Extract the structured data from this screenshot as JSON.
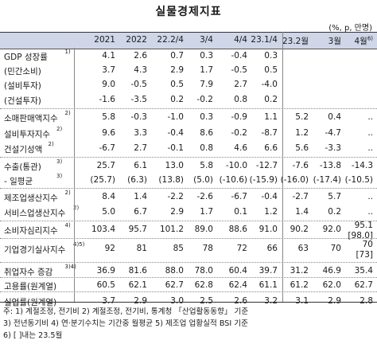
{
  "title": "실물경제지표",
  "unit": "(%, p, 만명)",
  "columns": [
    "2021",
    "2022",
    "22.2/4",
    "3/4",
    "4/4",
    "23.1/4",
    "23.2월",
    "3월",
    "4월"
  ],
  "col4_sup": "6)",
  "rows": [
    {
      "label": "GDP 성장률",
      "sup": "1)",
      "values": [
        "4.1",
        "2.6",
        "0.7",
        "0.3",
        "-0.4",
        "0.3",
        "",
        "",
        ""
      ]
    },
    {
      "label": "(민간소비)",
      "sup": "",
      "values": [
        "3.7",
        "4.3",
        "2.9",
        "1.7",
        "-0.5",
        "0.5",
        "",
        "",
        ""
      ]
    },
    {
      "label": "(설비투자)",
      "sup": "",
      "values": [
        "9.0",
        "-0.5",
        "0.5",
        "7.9",
        "2.7",
        "-4.0",
        "",
        "",
        ""
      ]
    },
    {
      "label": "(건설투자)",
      "sup": "",
      "values": [
        "-1.6",
        "-3.5",
        "0.2",
        "-0.2",
        "0.8",
        "0.2",
        "",
        "",
        ""
      ]
    },
    {
      "label": "소매판매액지수",
      "sup": "2)",
      "values": [
        "5.8",
        "-0.3",
        "-1.0",
        "0.3",
        "-0.9",
        "1.1",
        "5.2",
        "0.4",
        ".."
      ]
    },
    {
      "label": "설비투자지수",
      "sup": "2)",
      "values": [
        "9.6",
        "3.3",
        "-0.4",
        "8.6",
        "-0.2",
        "-8.7",
        "1.2",
        "-4.7",
        ".."
      ]
    },
    {
      "label": "건설기성액",
      "sup": "2)",
      "values": [
        "-6.7",
        "2.7",
        "-0.1",
        "0.8",
        "4.6",
        "6.6",
        "5.6",
        "-3.3",
        ".."
      ]
    },
    {
      "label": "수출(통관)",
      "sup": "3)",
      "values": [
        "25.7",
        "6.1",
        "13.0",
        "5.8",
        "-10.0",
        "-12.7",
        "-7.6",
        "-13.8",
        "-14.3"
      ]
    },
    {
      "label": " - 일평균",
      "sup": "3)",
      "values": [
        "(25.7)",
        "(6.3)",
        "(13.8)",
        "(5.0)",
        "(-10.6)",
        "(-15.9)",
        "(-16.0)",
        "(-17.4)",
        "(-10.5)"
      ]
    },
    {
      "label": "제조업생산지수",
      "sup": "2)",
      "values": [
        "8.4",
        "1.4",
        "-2.2",
        "-2.6",
        "-6.7",
        "-0.4",
        "-2.7",
        "5.7",
        ".."
      ]
    },
    {
      "label": "서비스업생산지수",
      "sup": "2)",
      "values": [
        "5.0",
        "6.7",
        "2.9",
        "1.7",
        "0.1",
        "1.2",
        "1.4",
        "0.2",
        ".."
      ]
    },
    {
      "label": "소비자심리지수",
      "sup": "4)",
      "values": [
        "103.4",
        "95.7",
        "101.2",
        "89.0",
        "88.6",
        "91.0",
        "90.2",
        "92.0",
        "95.1"
      ],
      "extra": "[98.0]"
    },
    {
      "label": "기업경기실사지수",
      "sup": "4)5)",
      "values": [
        "92",
        "81",
        "85",
        "78",
        "72",
        "66",
        "63",
        "70",
        "70"
      ],
      "extra": "[73]"
    },
    {
      "label": "취업자수 증감",
      "sup": "3)4)",
      "values": [
        "36.9",
        "81.6",
        "88.0",
        "78.0",
        "60.4",
        "39.7",
        "31.2",
        "46.9",
        "35.4"
      ]
    },
    {
      "label": "고용률(원계열)",
      "sup": "",
      "values": [
        "60.5",
        "62.1",
        "62.7",
        "62.8",
        "62.4",
        "61.1",
        "61.2",
        "62.0",
        "62.7"
      ]
    },
    {
      "label": "실업률(원계열)",
      "sup": "",
      "values": [
        "3.7",
        "2.9",
        "3.0",
        "2.5",
        "2.6",
        "3.2",
        "3.1",
        "2.9",
        "2.8"
      ]
    }
  ],
  "footnotes": [
    "주: 1) 계절조정, 전기비   2) 계절조정, 전기비, 통계청 「산업활동동향」 기준",
    "     3) 전년동기비   4) 연·분기수치는 기간중 월평균   5) 제조업 업황실적 BSI 기준",
    "     6) [ ]내는 23.5월"
  ]
}
